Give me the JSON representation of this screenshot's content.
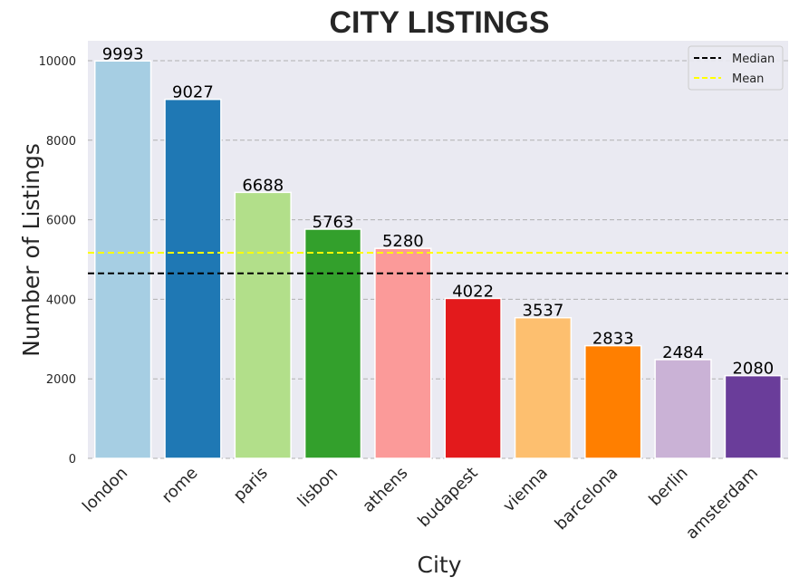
{
  "chart_data": {
    "type": "bar",
    "title": "CITY LISTINGS",
    "xlabel": "City",
    "ylabel": "Number of Listings",
    "categories": [
      "london",
      "rome",
      "paris",
      "lisbon",
      "athens",
      "budapest",
      "vienna",
      "barcelona",
      "berlin",
      "amsterdam"
    ],
    "values": [
      9993,
      9027,
      6688,
      5763,
      5280,
      4022,
      3537,
      2833,
      2484,
      2080
    ],
    "bar_colors": [
      "#a6cee3",
      "#1f78b4",
      "#b2df8a",
      "#33a02c",
      "#fb9a99",
      "#e31a1c",
      "#fdbf6f",
      "#ff7f00",
      "#cab2d6",
      "#6a3d9a"
    ],
    "yticks": [
      0,
      2000,
      4000,
      6000,
      8000,
      10000
    ],
    "ylim": [
      0,
      10500
    ],
    "grid": "horizontal dashed",
    "background": "#eaeaf2",
    "reference_lines": [
      {
        "name": "Median",
        "value": 4651,
        "color": "#000000",
        "style": "dashed"
      },
      {
        "name": "Mean",
        "value": 5171,
        "color": "#ffff00",
        "style": "dashed"
      }
    ],
    "legend": {
      "placement": "top-right",
      "entries": [
        "Median",
        "Mean"
      ]
    }
  }
}
